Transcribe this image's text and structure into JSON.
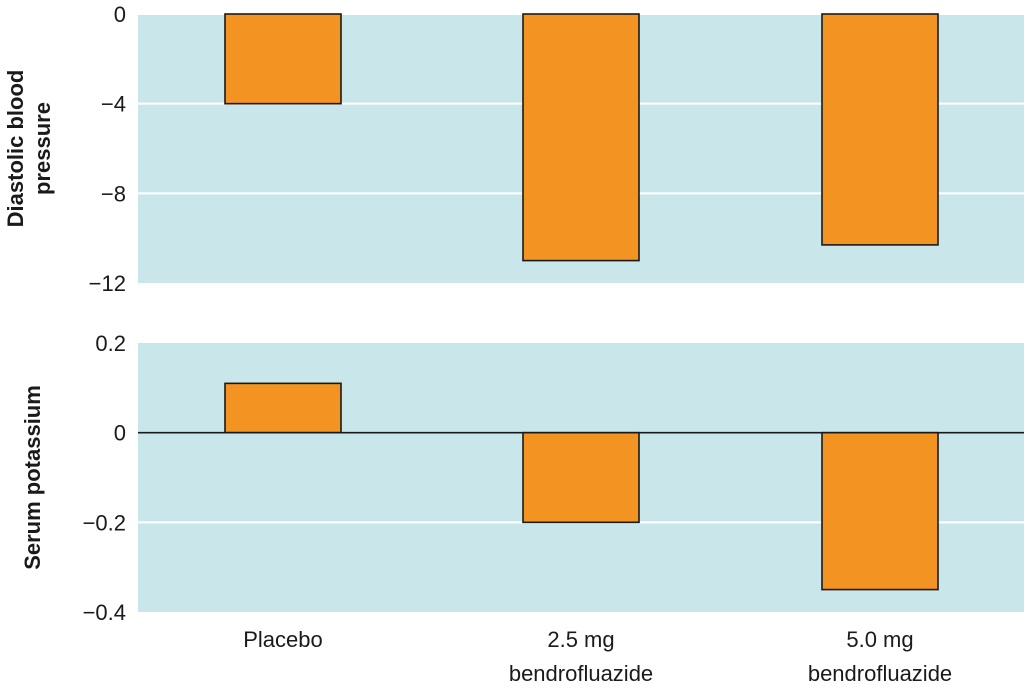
{
  "colors": {
    "panel_bg": "#c9e6ea",
    "gridline": "#ffffff",
    "bar_fill": "#f39321",
    "bar_stroke": "#1a1a1a",
    "zero_line": "#1a1a1a"
  },
  "chart_data": [
    {
      "type": "bar",
      "categories": [
        [
          "Placebo"
        ],
        [
          "2.5 mg",
          "bendrofluazide"
        ],
        [
          "5.0 mg",
          "bendrofluazide"
        ]
      ],
      "values": [
        -4,
        -11,
        -10.3
      ],
      "ylabel": [
        "Diastolic blood",
        "pressure"
      ],
      "ylim": [
        -12,
        0
      ],
      "yticks": [
        0,
        -4,
        -8,
        -12
      ],
      "ytick_labels": [
        "0",
        "−4",
        "−8",
        "−12"
      ],
      "grid": true
    },
    {
      "type": "bar",
      "categories": [
        [
          "Placebo"
        ],
        [
          "2.5 mg",
          "bendrofluazide"
        ],
        [
          "5.0 mg",
          "bendrofluazide"
        ]
      ],
      "values": [
        0.11,
        -0.2,
        -0.35
      ],
      "ylabel": [
        "Serum potassium"
      ],
      "ylim": [
        -0.4,
        0.2
      ],
      "yticks": [
        0.2,
        0,
        -0.2,
        -0.4
      ],
      "ytick_labels": [
        "0.2",
        "0",
        "−0.2",
        "−0.4"
      ],
      "grid": true,
      "zero_line": true
    }
  ]
}
